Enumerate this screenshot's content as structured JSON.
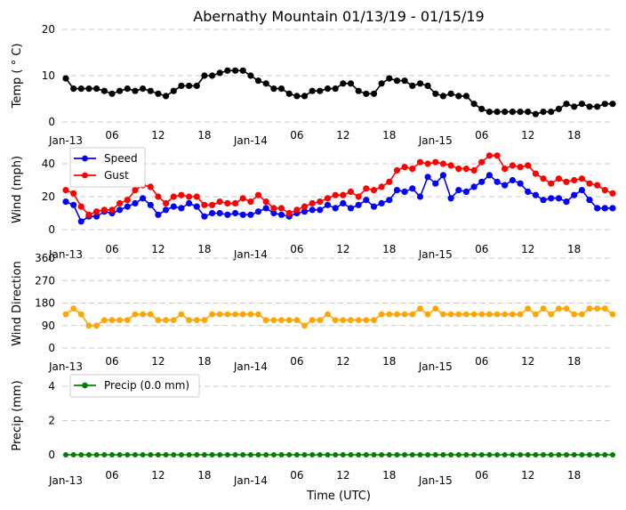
{
  "chart_data": [
    {
      "type": "line",
      "title": "Abernathy Mountain 01/13/19 - 01/15/19",
      "ylabel": "Temp ($^\\circ$C)",
      "ylabel_display": "Temp ( ° C)",
      "xlabel": "",
      "ylim": [
        0,
        20
      ],
      "yticks": [
        "0",
        "10",
        "20"
      ],
      "grid": true,
      "x_tick_labels": [
        "Jan-13",
        "06",
        "12",
        "18",
        "Jan-14",
        "06",
        "12",
        "18",
        "Jan-15",
        "06",
        "12",
        "18"
      ],
      "series": [
        {
          "name": "Temp",
          "color": "#000000",
          "values": [
            9.4,
            7.2,
            7.2,
            7.2,
            7.2,
            6.7,
            6.1,
            6.7,
            7.2,
            6.7,
            7.2,
            6.7,
            6.1,
            5.6,
            6.7,
            7.8,
            7.8,
            7.8,
            10.0,
            10.0,
            10.6,
            11.1,
            11.1,
            11.1,
            10.0,
            8.9,
            8.3,
            7.2,
            7.2,
            6.1,
            5.6,
            5.6,
            6.7,
            6.7,
            7.2,
            7.2,
            8.3,
            8.3,
            6.7,
            6.1,
            6.1,
            8.3,
            9.4,
            8.9,
            8.9,
            7.8,
            8.3,
            7.8,
            6.1,
            5.6,
            6.1,
            5.6,
            5.6,
            3.9,
            2.8,
            2.2,
            2.2,
            2.2,
            2.2,
            2.2,
            2.2,
            1.7,
            2.2,
            2.2,
            2.8,
            3.9,
            3.3,
            3.9,
            3.3,
            3.3,
            3.9,
            3.9
          ]
        }
      ]
    },
    {
      "type": "line",
      "ylabel": "Wind (mph)",
      "ylim": [
        0,
        50
      ],
      "yticks": [
        "0",
        "20",
        "40"
      ],
      "grid": true,
      "legend": "top-left",
      "x_tick_labels": [
        "Jan-13",
        "06",
        "12",
        "18",
        "Jan-14",
        "06",
        "12",
        "18",
        "Jan-15",
        "06",
        "12",
        "18"
      ],
      "series": [
        {
          "name": "Speed",
          "color": "#0000ff",
          "values": [
            17,
            15,
            5,
            8,
            8,
            11,
            10,
            12,
            14,
            16,
            19,
            15,
            9,
            12,
            14,
            13,
            16,
            14,
            8,
            10,
            10,
            9,
            10,
            9,
            9,
            11,
            13,
            10,
            9,
            8,
            10,
            11,
            12,
            12,
            15,
            13,
            16,
            13,
            15,
            18,
            14,
            16,
            18,
            24,
            23,
            25,
            20,
            32,
            28,
            33,
            19,
            24,
            23,
            26,
            29,
            33,
            29,
            27,
            30,
            28,
            23,
            21,
            18,
            19,
            19,
            17,
            21,
            24,
            18,
            13,
            13,
            13
          ]
        },
        {
          "name": "Gust",
          "color": "#ff0000",
          "values": [
            24,
            22,
            14,
            9,
            11,
            12,
            12,
            16,
            18,
            24,
            27,
            26,
            20,
            16,
            20,
            21,
            20,
            20,
            15,
            15,
            17,
            16,
            16,
            19,
            17,
            21,
            17,
            13,
            13,
            10,
            12,
            14,
            16,
            17,
            19,
            21,
            21,
            23,
            20,
            25,
            24,
            26,
            29,
            36,
            38,
            37,
            41,
            40,
            41,
            40,
            39,
            37,
            37,
            36,
            41,
            45,
            45,
            37,
            39,
            38,
            39,
            34,
            31,
            28,
            31,
            29,
            30,
            31,
            28,
            27,
            24,
            22
          ]
        }
      ]
    },
    {
      "type": "line",
      "ylabel": "Wind Direction",
      "ylim": [
        0,
        360
      ],
      "yticks": [
        "0",
        "90",
        "180",
        "270",
        "360"
      ],
      "grid": true,
      "x_tick_labels": [
        "Jan-13",
        "06",
        "12",
        "18",
        "Jan-14",
        "06",
        "12",
        "18",
        "Jan-15",
        "06",
        "12",
        "18"
      ],
      "series": [
        {
          "name": "Wind Direction",
          "color": "#ffa500",
          "values": [
            135,
            158,
            135,
            90,
            90,
            112,
            112,
            112,
            112,
            135,
            135,
            135,
            112,
            112,
            112,
            135,
            112,
            112,
            112,
            135,
            135,
            135,
            135,
            135,
            135,
            135,
            112,
            112,
            112,
            112,
            112,
            90,
            112,
            112,
            135,
            112,
            112,
            112,
            112,
            112,
            112,
            135,
            135,
            135,
            135,
            135,
            158,
            135,
            158,
            135,
            135,
            135,
            135,
            135,
            135,
            135,
            135,
            135,
            135,
            135,
            158,
            135,
            158,
            135,
            158,
            158,
            135,
            135,
            158,
            158,
            158,
            135
          ]
        }
      ]
    },
    {
      "type": "line",
      "ylabel": "Precip (mm)",
      "xlabel": "Time (UTC)",
      "ylim": [
        0,
        5
      ],
      "yticks": [
        "0",
        "2",
        "4"
      ],
      "grid": true,
      "legend": "top-left",
      "x_tick_labels": [
        "Jan-13",
        "06",
        "12",
        "18",
        "Jan-14",
        "06",
        "12",
        "18",
        "Jan-15",
        "06",
        "12",
        "18"
      ],
      "series": [
        {
          "name": "Precip (0.0 mm)",
          "color": "#008000",
          "values": [
            0,
            0,
            0,
            0,
            0,
            0,
            0,
            0,
            0,
            0,
            0,
            0,
            0,
            0,
            0,
            0,
            0,
            0,
            0,
            0,
            0,
            0,
            0,
            0,
            0,
            0,
            0,
            0,
            0,
            0,
            0,
            0,
            0,
            0,
            0,
            0,
            0,
            0,
            0,
            0,
            0,
            0,
            0,
            0,
            0,
            0,
            0,
            0,
            0,
            0,
            0,
            0,
            0,
            0,
            0,
            0,
            0,
            0,
            0,
            0,
            0,
            0,
            0,
            0,
            0,
            0,
            0,
            0,
            0,
            0,
            0,
            0
          ]
        }
      ]
    }
  ]
}
